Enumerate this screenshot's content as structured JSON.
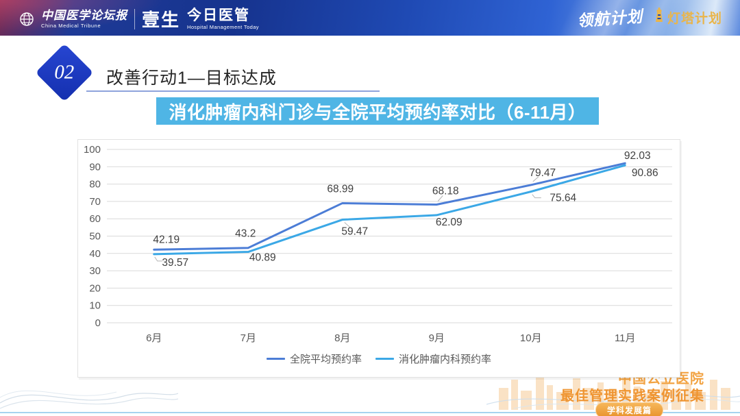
{
  "header": {
    "brand_left": {
      "logo1_cn": "中国医学论坛报",
      "logo1_en": "China Medical Tribune",
      "logo2": "壹生",
      "logo3_cn": "今日医管",
      "logo3_en": "Hospital Management Today"
    },
    "brand_right": {
      "sail_plan": "领航计划",
      "lighthouse_plan": "灯塔计划"
    }
  },
  "section": {
    "number": "02",
    "title": "改善行动1—目标达成"
  },
  "banner": {
    "text": "消化肿瘤内科门诊与全院平均预约率对比（6-11月）",
    "bg": "#4fb5e5"
  },
  "chart_data": {
    "type": "line",
    "title": "消化肿瘤内科门诊与全院平均预约率对比（6-11月）",
    "categories": [
      "6月",
      "7月",
      "8月",
      "9月",
      "10月",
      "11月"
    ],
    "series": [
      {
        "name": "全院平均预约率",
        "color": "#4c7dd6",
        "values": [
          42.19,
          43.2,
          68.99,
          68.18,
          79.47,
          92.03
        ],
        "labels": [
          "42.19",
          "43.2",
          "68.99",
          "68.18",
          "79.47",
          "92.03"
        ]
      },
      {
        "name": "消化肿瘤内科预约率",
        "color": "#3ba8e6",
        "values": [
          39.57,
          40.89,
          59.47,
          62.09,
          75.64,
          90.86
        ],
        "labels": [
          "39.57",
          "40.89",
          "59.47",
          "62.09",
          "75.64",
          "90.86"
        ]
      }
    ],
    "ylim": [
      0,
      100
    ],
    "ytick_step": 10,
    "grid": true,
    "grid_color": "#d9d9d9",
    "tick_label_color": "#595959",
    "data_label_color": "#404040",
    "legend_position": "bottom"
  },
  "watermark": {
    "line1": "中国公立医院",
    "line2": "最佳管理实践案例征集",
    "badge": "学科发展篇"
  }
}
